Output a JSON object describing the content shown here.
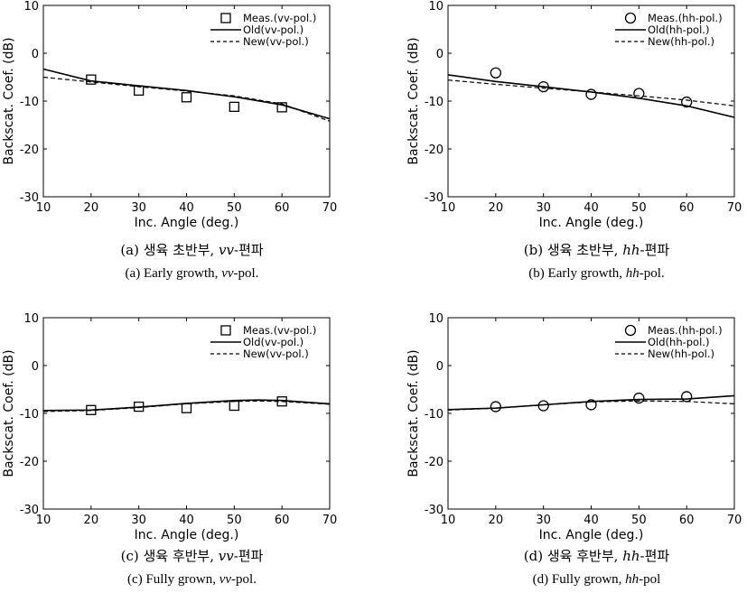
{
  "chart_data": [
    {
      "type": "line",
      "panel_id": "a",
      "xlabel": "Inc. Angle (deg.)",
      "ylabel": "Backscat. Coef. (dB)",
      "xlim": [
        10,
        70
      ],
      "ylim": [
        -30,
        10
      ],
      "xticks": [
        10,
        20,
        30,
        40,
        50,
        60,
        70
      ],
      "yticks": [
        10,
        0,
        -10,
        -20,
        -30
      ],
      "grid": false,
      "legend_position": "top-right",
      "series": [
        {
          "name": "Meas.(vv-pol.)",
          "kind": "marker",
          "marker": "square",
          "x": [
            20,
            30,
            40,
            50,
            60
          ],
          "y": [
            -5.5,
            -7.8,
            -9.2,
            -11.2,
            -11.3
          ]
        },
        {
          "name": "Old(vv-pol.)",
          "kind": "line",
          "dash": "solid",
          "x": [
            10,
            20,
            30,
            40,
            50,
            60,
            70
          ],
          "y": [
            -3.3,
            -5.8,
            -6.8,
            -7.8,
            -9.1,
            -10.8,
            -13.7
          ]
        },
        {
          "name": "New(vv-pol.)",
          "kind": "line",
          "dash": "dashed",
          "x": [
            10,
            20,
            30,
            40,
            50,
            60,
            70
          ],
          "y": [
            -5.0,
            -6.0,
            -7.0,
            -7.9,
            -8.9,
            -10.6,
            -14.2
          ]
        }
      ],
      "caption_ko": {
        "prefix": "(a) 생육 초반부, ",
        "ital": "vv",
        "suffix": "-편파"
      },
      "caption_en": {
        "prefix": "(a) Early growth, ",
        "ital": "vv",
        "suffix": "-pol."
      }
    },
    {
      "type": "line",
      "panel_id": "b",
      "xlabel": "Inc. Angle (deg.)",
      "ylabel": "Backscat. Coef. (dB)",
      "xlim": [
        10,
        70
      ],
      "ylim": [
        -30,
        10
      ],
      "xticks": [
        10,
        20,
        30,
        40,
        50,
        60,
        70
      ],
      "yticks": [
        10,
        0,
        -10,
        -20,
        -30
      ],
      "grid": false,
      "legend_position": "top-right",
      "series": [
        {
          "name": "Meas.(hh-pol.)",
          "kind": "marker",
          "marker": "circle",
          "x": [
            20,
            30,
            40,
            50,
            60
          ],
          "y": [
            -4.1,
            -7.0,
            -8.6,
            -8.4,
            -10.2
          ]
        },
        {
          "name": "Old(hh-pol.)",
          "kind": "line",
          "dash": "solid",
          "x": [
            10,
            20,
            30,
            40,
            50,
            60,
            70
          ],
          "y": [
            -4.5,
            -5.9,
            -7.0,
            -8.1,
            -9.4,
            -11.0,
            -13.4
          ]
        },
        {
          "name": "New(hh-pol.)",
          "kind": "line",
          "dash": "dashed",
          "x": [
            10,
            20,
            30,
            40,
            50,
            60,
            70
          ],
          "y": [
            -5.6,
            -6.5,
            -7.3,
            -8.1,
            -8.9,
            -9.8,
            -11.0
          ]
        }
      ],
      "caption_ko": {
        "prefix": "(b) 생육 초반부, ",
        "ital": "hh",
        "suffix": "-편파"
      },
      "caption_en": {
        "prefix": "(b) Early growth, ",
        "ital": "hh",
        "suffix": "-pol."
      }
    },
    {
      "type": "line",
      "panel_id": "c",
      "xlabel": "Inc. Angle (deg.)",
      "ylabel": "Backscat. Coef. (dB)",
      "xlim": [
        10,
        70
      ],
      "ylim": [
        -30,
        10
      ],
      "xticks": [
        10,
        20,
        30,
        40,
        50,
        60,
        70
      ],
      "yticks": [
        10,
        0,
        -10,
        -20,
        -30
      ],
      "grid": false,
      "legend_position": "top-right",
      "series": [
        {
          "name": "Meas.(vv-pol.)",
          "kind": "marker",
          "marker": "square",
          "x": [
            20,
            30,
            40,
            50,
            60
          ],
          "y": [
            -9.3,
            -8.6,
            -8.9,
            -8.4,
            -7.5
          ]
        },
        {
          "name": "Old(vv-pol.)",
          "kind": "line",
          "dash": "solid",
          "x": [
            10,
            20,
            30,
            40,
            50,
            55,
            60,
            70
          ],
          "y": [
            -9.4,
            -9.3,
            -8.7,
            -7.9,
            -7.3,
            -7.2,
            -7.3,
            -8.0
          ]
        },
        {
          "name": "New(vv-pol.)",
          "kind": "line",
          "dash": "dashed",
          "x": [
            10,
            20,
            30,
            40,
            50,
            55,
            60,
            70
          ],
          "y": [
            -9.6,
            -9.4,
            -8.8,
            -8.0,
            -7.5,
            -7.4,
            -7.5,
            -8.1
          ]
        }
      ],
      "caption_ko": {
        "prefix": "(c) 생육 후반부, ",
        "ital": "vv",
        "suffix": "-편파"
      },
      "caption_en": {
        "prefix": "(c) Fully grown, ",
        "ital": "vv",
        "suffix": "-pol."
      }
    },
    {
      "type": "line",
      "panel_id": "d",
      "xlabel": "Inc. Angle (deg.)",
      "ylabel": "Backscat. Coef. (dB)",
      "xlim": [
        10,
        70
      ],
      "ylim": [
        -30,
        10
      ],
      "xticks": [
        10,
        20,
        30,
        40,
        50,
        60,
        70
      ],
      "yticks": [
        10,
        0,
        -10,
        -20,
        -30
      ],
      "grid": false,
      "legend_position": "top-right",
      "series": [
        {
          "name": "Meas.(hh-pol.)",
          "kind": "marker",
          "marker": "circle",
          "x": [
            20,
            30,
            40,
            50,
            60
          ],
          "y": [
            -8.6,
            -8.4,
            -8.2,
            -6.8,
            -6.5
          ]
        },
        {
          "name": "Old(hh-pol.)",
          "kind": "line",
          "dash": "solid",
          "x": [
            10,
            20,
            30,
            40,
            50,
            60,
            70
          ],
          "y": [
            -9.2,
            -8.9,
            -8.2,
            -7.5,
            -7.1,
            -7.0,
            -6.3
          ]
        },
        {
          "name": "New(hh-pol.)",
          "kind": "line",
          "dash": "dashed",
          "x": [
            10,
            20,
            30,
            40,
            50,
            60,
            70
          ],
          "y": [
            -9.3,
            -8.9,
            -8.2,
            -7.6,
            -7.4,
            -7.5,
            -8.0
          ]
        }
      ],
      "caption_ko": {
        "prefix": "(d) 생육 후반부, ",
        "ital": "hh",
        "suffix": "-편파"
      },
      "caption_en": {
        "prefix": "(d) Fully grown, ",
        "ital": "hh",
        "suffix": "-pol"
      }
    }
  ]
}
